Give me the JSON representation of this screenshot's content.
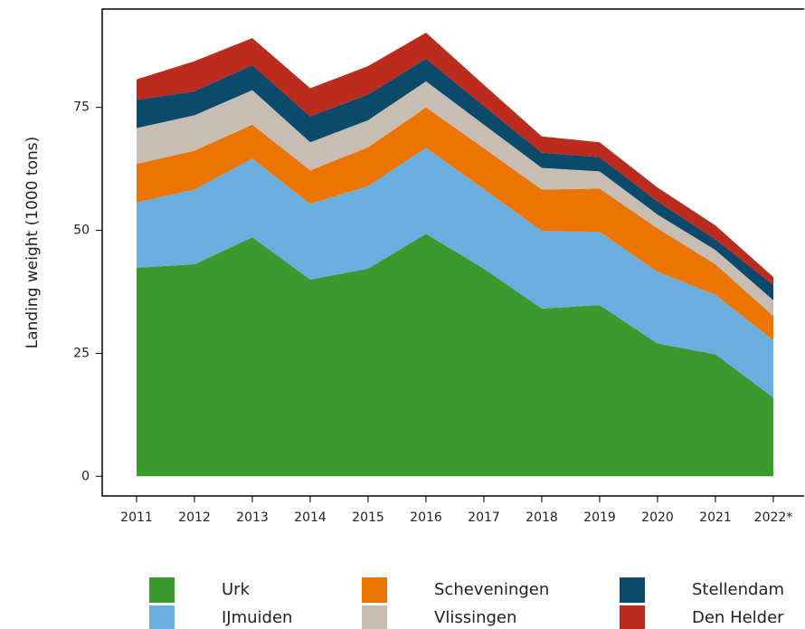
{
  "chart_data": {
    "type": "stacked_area",
    "y_label": "Landing weight (1000 tons)",
    "categories": [
      "2011",
      "2012",
      "2013",
      "2014",
      "2015",
      "2016",
      "2017",
      "2018",
      "2019",
      "2020",
      "2021",
      "2022*"
    ],
    "series": [
      {
        "name": "Urk",
        "color": "#3a9a2e",
        "values": [
          42.4,
          43.1,
          48.6,
          40.0,
          42.2,
          49.3,
          42.2,
          34.1,
          34.8,
          27.0,
          24.8,
          16.0
        ]
      },
      {
        "name": "IJmuiden",
        "color": "#6aaee0",
        "values": [
          13.3,
          15.2,
          16.0,
          15.4,
          16.8,
          17.5,
          16.2,
          15.8,
          14.9,
          14.6,
          12.1,
          11.7
        ]
      },
      {
        "name": "Scheveningen",
        "color": "#ec7400",
        "values": [
          7.8,
          7.9,
          6.9,
          6.8,
          7.9,
          8.2,
          8.3,
          8.4,
          8.8,
          8.8,
          6.2,
          4.9
        ]
      },
      {
        "name": "Vlissingen",
        "color": "#c8bdb2",
        "values": [
          7.3,
          7.2,
          7.0,
          5.7,
          5.5,
          5.3,
          4.8,
          4.4,
          3.5,
          2.8,
          2.9,
          3.2
        ]
      },
      {
        "name": "Stellendam",
        "color": "#0b4a6a",
        "values": [
          5.7,
          4.9,
          5.1,
          5.3,
          5.2,
          4.6,
          3.8,
          3.1,
          2.9,
          2.7,
          2.2,
          3.1
        ]
      },
      {
        "name": "Den Helder",
        "color": "#bd2a1e",
        "values": [
          4.2,
          6.1,
          5.5,
          5.7,
          5.8,
          5.3,
          4.3,
          3.3,
          3.0,
          2.8,
          2.8,
          1.6
        ]
      }
    ],
    "ylim": [
      -4,
      95
    ],
    "yticks": [
      0,
      25,
      50,
      75
    ],
    "grid": false,
    "legend": "bottom"
  }
}
